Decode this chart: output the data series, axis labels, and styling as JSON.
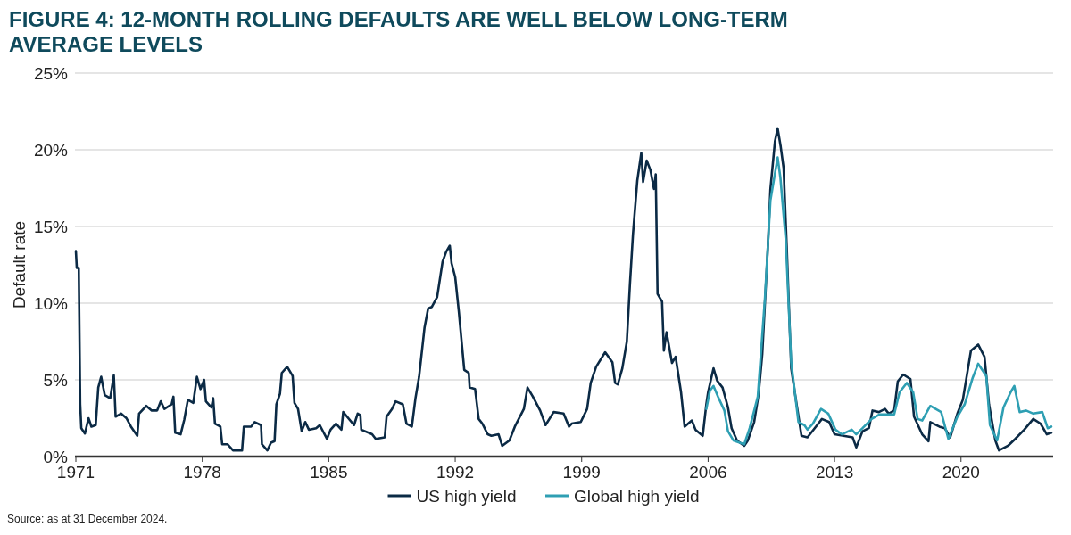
{
  "chart_data": {
    "type": "line",
    "title": "FIGURE 4: 12-MONTH ROLLING DEFAULTS ARE WELL BELOW LONG-TERM AVERAGE LEVELS",
    "ylabel": "Default rate",
    "annotations": [
      "Source: as at 31 December 2024."
    ],
    "xlim": [
      1970.95,
      2025.1
    ],
    "xticks": [
      1971,
      1978,
      1985,
      1992,
      1999,
      2006,
      2013,
      2020
    ],
    "ylim": [
      0,
      25
    ],
    "yticks": [
      {
        "value": 0,
        "label": "0%"
      },
      {
        "value": 5,
        "label": "5%"
      },
      {
        "value": 10,
        "label": "10%"
      },
      {
        "value": 15,
        "label": "15%"
      },
      {
        "value": 20,
        "label": "20%"
      },
      {
        "value": 25,
        "label": "25%"
      }
    ],
    "grid": "y",
    "legend": "bottom",
    "line_style": "solid",
    "series": [
      {
        "name": "US high yield",
        "color": "#0b2a45",
        "x": [
          1971.0,
          1971.05,
          1971.16,
          1971.24,
          1971.3,
          1971.5,
          1971.7,
          1971.86,
          1972.1,
          1972.24,
          1972.4,
          1972.6,
          1972.9,
          1973.1,
          1973.2,
          1973.5,
          1973.8,
          1974.05,
          1974.4,
          1974.5,
          1974.9,
          1975.2,
          1975.5,
          1975.7,
          1975.9,
          1976.3,
          1976.4,
          1976.5,
          1976.8,
          1977.0,
          1977.2,
          1977.5,
          1977.7,
          1977.9,
          1978.1,
          1978.2,
          1978.5,
          1978.6,
          1978.7,
          1979.0,
          1979.1,
          1979.4,
          1979.7,
          1980.2,
          1980.3,
          1980.7,
          1980.9,
          1981.25,
          1981.3,
          1981.6,
          1981.8,
          1982.0,
          1982.1,
          1982.3,
          1982.4,
          1982.7,
          1983.0,
          1983.1,
          1983.3,
          1983.5,
          1983.7,
          1983.9,
          1984.3,
          1984.5,
          1984.9,
          1985.1,
          1985.4,
          1985.7,
          1985.8,
          1986.4,
          1986.6,
          1986.75,
          1986.8,
          1987.4,
          1987.6,
          1988.1,
          1988.2,
          1988.5,
          1988.7,
          1989.1,
          1989.3,
          1989.6,
          1989.8,
          1990.0,
          1990.3,
          1990.5,
          1990.7,
          1991.0,
          1991.3,
          1991.5,
          1991.7,
          1991.8,
          1992.0,
          1992.2,
          1992.5,
          1992.75,
          1992.8,
          1993.1,
          1993.3,
          1993.5,
          1993.8,
          1994.0,
          1994.4,
          1994.6,
          1995.0,
          1995.3,
          1995.8,
          1996.0,
          1996.3,
          1996.7,
          1997.0,
          1997.45,
          1998.0,
          1998.3,
          1998.45,
          1998.95,
          1999.3,
          1999.5,
          1999.8,
          2000.3,
          2000.7,
          2000.85,
          2001.0,
          2001.25,
          2001.5,
          2001.67,
          2001.84,
          2002.08,
          2002.3,
          2002.4,
          2002.6,
          2002.8,
          2003.0,
          2003.1,
          2003.2,
          2003.45,
          2003.55,
          2003.7,
          2004.0,
          2004.2,
          2004.5,
          2004.7,
          2005.1,
          2005.3,
          2005.7,
          2005.9,
          2006.0,
          2006.2,
          2006.3,
          2006.5,
          2006.8,
          2007.1,
          2007.3,
          2007.6,
          2008.0,
          2008.2,
          2008.55,
          2008.8,
          2009.0,
          2009.3,
          2009.45,
          2009.7,
          2009.85,
          2010.02,
          2010.18,
          2010.35,
          2010.6,
          2010.9,
          2011.17,
          2011.5,
          2011.9,
          2012.3,
          2012.7,
          2013.0,
          2013.5,
          2014.0,
          2014.2,
          2014.55,
          2014.9,
          2015.1,
          2015.45,
          2015.8,
          2016.0,
          2016.3,
          2016.5,
          2016.8,
          2017.2,
          2017.4,
          2017.85,
          2018.2,
          2018.3,
          2018.8,
          2019.1,
          2019.4,
          2019.8,
          2020.1,
          2020.55,
          2020.95,
          2021.3,
          2021.55,
          2021.9,
          2022.1,
          2022.6,
          2023.0,
          2023.5,
          2024.0,
          2024.4,
          2024.75,
          2025.0
        ],
        "values": [
          13.4,
          12.3,
          12.3,
          3.4,
          1.85,
          1.5,
          2.5,
          1.95,
          2.05,
          4.5,
          5.2,
          4.0,
          3.8,
          5.3,
          2.6,
          2.8,
          2.5,
          1.95,
          1.35,
          2.8,
          3.3,
          3.0,
          3.0,
          3.6,
          3.1,
          3.4,
          3.9,
          1.55,
          1.45,
          2.4,
          3.7,
          3.5,
          5.2,
          4.4,
          5.0,
          3.6,
          3.2,
          3.8,
          2.15,
          1.95,
          0.8,
          0.8,
          0.4,
          0.4,
          1.95,
          1.95,
          2.25,
          2.05,
          0.8,
          0.4,
          0.9,
          1.0,
          3.4,
          4.1,
          5.45,
          5.85,
          5.25,
          3.5,
          3.1,
          1.65,
          2.25,
          1.75,
          1.85,
          2.05,
          1.15,
          1.75,
          2.15,
          1.75,
          2.9,
          2.05,
          2.8,
          2.7,
          1.75,
          1.45,
          1.15,
          1.25,
          2.6,
          3.1,
          3.6,
          3.4,
          2.15,
          1.95,
          3.8,
          5.2,
          8.4,
          9.65,
          9.75,
          10.4,
          12.7,
          13.35,
          13.75,
          12.6,
          11.7,
          9.45,
          5.65,
          5.45,
          4.5,
          4.4,
          2.45,
          2.15,
          1.45,
          1.35,
          1.45,
          0.7,
          1.05,
          1.95,
          3.1,
          4.5,
          3.9,
          3.0,
          2.05,
          2.9,
          2.8,
          1.95,
          2.15,
          2.25,
          3.1,
          4.8,
          5.85,
          6.8,
          6.15,
          4.8,
          4.7,
          5.75,
          7.5,
          11.2,
          14.5,
          18.0,
          19.8,
          17.9,
          19.3,
          18.7,
          17.45,
          18.4,
          10.6,
          10.1,
          6.9,
          8.1,
          6.1,
          6.5,
          4.2,
          1.95,
          2.35,
          1.75,
          1.35,
          3.4,
          4.2,
          5.25,
          5.75,
          4.95,
          4.5,
          3.2,
          1.85,
          1.05,
          0.7,
          1.05,
          2.25,
          4.1,
          6.7,
          13.5,
          17.45,
          20.55,
          21.4,
          20.2,
          18.8,
          13.75,
          5.75,
          3.4,
          1.35,
          1.25,
          1.85,
          2.45,
          2.25,
          1.45,
          1.35,
          1.25,
          0.6,
          1.65,
          1.85,
          3.0,
          2.9,
          3.1,
          2.8,
          3.0,
          4.9,
          5.35,
          5.05,
          2.6,
          1.45,
          1.0,
          2.25,
          1.95,
          1.85,
          1.25,
          2.8,
          3.7,
          6.9,
          7.3,
          6.5,
          3.4,
          1.05,
          0.4,
          0.7,
          1.15,
          1.75,
          2.45,
          2.15,
          1.45,
          1.55
        ]
      },
      {
        "name": "Global high yield",
        "color": "#2e9fb3",
        "x": [
          2005.9,
          2006.1,
          2006.3,
          2006.55,
          2006.9,
          2007.1,
          2007.4,
          2008.0,
          2008.3,
          2008.75,
          2009.15,
          2009.45,
          2009.85,
          2010.0,
          2010.3,
          2010.6,
          2011.0,
          2011.33,
          2011.5,
          2011.8,
          2012.25,
          2012.65,
          2013.05,
          2013.4,
          2013.95,
          2014.2,
          2014.55,
          2015.05,
          2015.5,
          2016.3,
          2016.6,
          2017.0,
          2017.35,
          2017.6,
          2017.85,
          2018.3,
          2018.9,
          2019.3,
          2019.8,
          2020.2,
          2020.65,
          2020.95,
          2021.4,
          2021.6,
          2022.0,
          2022.35,
          2022.75,
          2022.95,
          2023.25,
          2023.6,
          2024.0,
          2024.5,
          2024.8,
          2025.0
        ],
        "values": [
          3.1,
          4.3,
          4.6,
          3.9,
          3.0,
          1.65,
          1.05,
          0.8,
          1.85,
          3.9,
          10.4,
          16.7,
          19.5,
          18.2,
          14.1,
          6.15,
          2.25,
          2.05,
          1.75,
          2.15,
          3.1,
          2.8,
          1.75,
          1.45,
          1.75,
          1.45,
          1.85,
          2.45,
          2.75,
          2.75,
          4.2,
          4.8,
          4.2,
          2.45,
          2.35,
          3.3,
          2.9,
          1.15,
          2.6,
          3.4,
          5.15,
          6.05,
          5.25,
          2.05,
          1.05,
          3.2,
          4.2,
          4.6,
          2.9,
          3.0,
          2.8,
          2.9,
          1.85,
          1.95
        ]
      }
    ]
  }
}
